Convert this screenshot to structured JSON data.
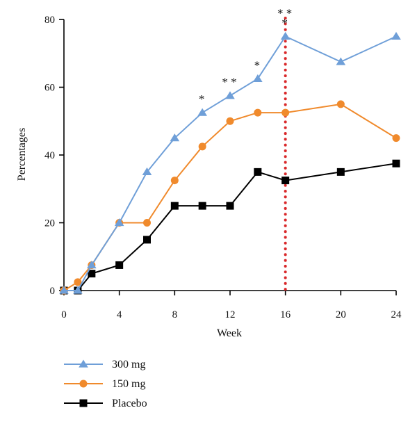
{
  "chart_data": {
    "type": "line",
    "xlabel": "Week",
    "ylabel": "Percentages",
    "xlim": [
      0,
      24
    ],
    "ylim": [
      0,
      80
    ],
    "xticks": [
      0,
      4,
      8,
      12,
      16,
      20,
      24
    ],
    "yticks": [
      0,
      20,
      40,
      60,
      80
    ],
    "grid": false,
    "legend_position": "bottom-left",
    "series": [
      {
        "name": "300 mg",
        "color": "#6f9fd8",
        "marker": "triangle",
        "points": [
          [
            0,
            0
          ],
          [
            1,
            0
          ],
          [
            2,
            7.5
          ],
          [
            4,
            20
          ],
          [
            6,
            35
          ],
          [
            8,
            45
          ],
          [
            10,
            52.5
          ],
          [
            12,
            57.5
          ],
          [
            14,
            62.5
          ],
          [
            16,
            75
          ],
          [
            20,
            67.5
          ],
          [
            24,
            75
          ]
        ]
      },
      {
        "name": "150 mg",
        "color": "#f08a2c",
        "marker": "circle",
        "points": [
          [
            0,
            0
          ],
          [
            1,
            2.5
          ],
          [
            2,
            7.5
          ],
          [
            4,
            20
          ],
          [
            6,
            20
          ],
          [
            8,
            32.5
          ],
          [
            10,
            42.5
          ],
          [
            12,
            50
          ],
          [
            14,
            52.5
          ],
          [
            16,
            52.5
          ],
          [
            20,
            55
          ],
          [
            24,
            45
          ]
        ]
      },
      {
        "name": "Placebo",
        "color": "#000000",
        "marker": "square",
        "points": [
          [
            0,
            0
          ],
          [
            1,
            0
          ],
          [
            2,
            5
          ],
          [
            4,
            7.5
          ],
          [
            6,
            15
          ],
          [
            8,
            25
          ],
          [
            10,
            25
          ],
          [
            12,
            25
          ],
          [
            14,
            35
          ],
          [
            16,
            32.5
          ],
          [
            20,
            35
          ],
          [
            24,
            37.5
          ]
        ]
      }
    ],
    "reference_line": {
      "x": 16,
      "color": "#d9282a",
      "style": "dotted"
    },
    "annotations": [
      {
        "text": "*",
        "x": 10,
        "y": 52.5
      },
      {
        "text": "* *",
        "x": 12,
        "y": 57.5
      },
      {
        "text": "*",
        "x": 14,
        "y": 62.5
      },
      {
        "text": "* *",
        "x": 16,
        "y": 75,
        "line": 1
      },
      {
        "text": "*",
        "x": 16,
        "y": 75,
        "line": 0
      }
    ]
  }
}
